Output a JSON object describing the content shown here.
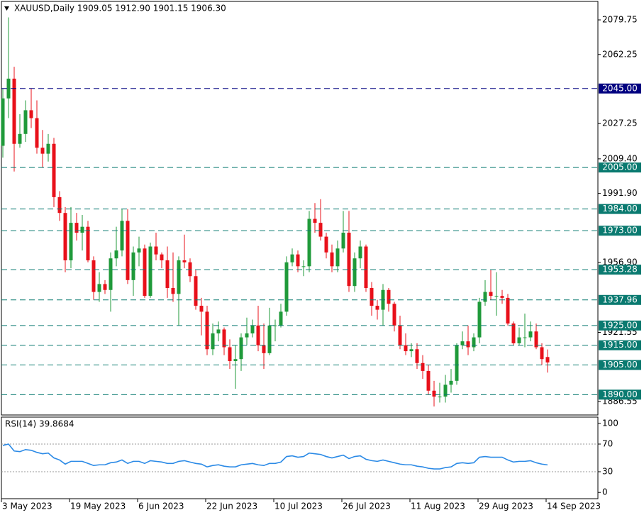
{
  "chart_data": [
    {
      "type": "candlestick",
      "title": "XAUUSD,Daily  1909.05 1912.90 1901.15 1906.30",
      "categories": [
        "3 May 2023",
        null,
        null,
        null,
        null,
        null,
        null,
        null,
        null,
        null,
        null,
        null,
        "19 May 2023",
        null,
        null,
        null,
        null,
        null,
        null,
        null,
        null,
        null,
        null,
        null,
        "6 Jun 2023",
        null,
        null,
        null,
        null,
        null,
        null,
        null,
        null,
        null,
        null,
        null,
        "22 Jun 2023",
        null,
        null,
        null,
        null,
        null,
        null,
        null,
        null,
        null,
        null,
        null,
        "10 Jul 2023",
        null,
        null,
        null,
        null,
        null,
        null,
        null,
        null,
        null,
        null,
        null,
        "26 Jul 2023",
        null,
        null,
        null,
        null,
        null,
        null,
        null,
        null,
        null,
        null,
        null,
        "11 Aug 2023",
        null,
        null,
        null,
        null,
        null,
        null,
        null,
        null,
        null,
        null,
        null,
        "29 Aug 2023",
        null,
        null,
        null,
        null,
        null,
        null,
        null,
        null,
        null,
        null,
        null,
        "14 Sep 2023"
      ],
      "open": [
        2016,
        2040,
        2050,
        2017,
        2022,
        2034,
        2030,
        2015,
        2012,
        2017,
        1990,
        1982,
        1958,
        1977,
        1972,
        1975,
        1958,
        1942,
        1946,
        1943,
        1959,
        1963,
        1978,
        1948,
        1962,
        1964,
        1940,
        1965,
        1961,
        1958,
        1944,
        1941,
        1958,
        1957,
        1950,
        1935,
        1932,
        1913,
        1921,
        1923,
        1914,
        1907,
        1908,
        1919,
        1921,
        1925,
        1915,
        1911,
        1925,
        1925,
        1932,
        1957,
        1961,
        1955,
        1955,
        1979,
        1977,
        1970,
        1962,
        1955,
        1964,
        1972,
        1945,
        1959,
        1965,
        1944,
        1935,
        1933,
        1943,
        1936,
        1925,
        1915,
        1912,
        1913,
        1906,
        1902,
        1892,
        1889,
        1889,
        1895,
        1897,
        1915,
        1917,
        1914,
        1919,
        1937,
        1942,
        1940,
        1940,
        1939,
        1926,
        1916,
        1919,
        1919,
        1922,
        1914,
        1909.05
      ],
      "high": [
        2045,
        2081,
        2056,
        2032,
        2039,
        2045,
        2039,
        2024,
        2022,
        2020,
        1993,
        1985,
        1985,
        1982,
        1981,
        1978,
        1960,
        1952,
        1948,
        1962,
        1975,
        1984,
        1984,
        1965,
        1970,
        1966,
        1967,
        1972,
        1962,
        1965,
        1962,
        1960,
        1971,
        1959,
        1953,
        1939,
        1935,
        1926,
        1927,
        1924,
        1918,
        1915,
        1921,
        1929,
        1928,
        1935,
        1926,
        1934,
        1928,
        1936,
        1960,
        1964,
        1963,
        1958,
        1983,
        1987,
        1989,
        1972,
        1966,
        1968,
        1983,
        1983,
        1962,
        1968,
        1966,
        1947,
        1938,
        1946,
        1944,
        1937,
        1930,
        1921,
        1916,
        1916,
        1910,
        1905,
        1897,
        1896,
        1900,
        1903,
        1916,
        1922,
        1925,
        1921,
        1939,
        1948,
        1953,
        1952,
        1943,
        1941,
        1927,
        1924,
        1931,
        1927,
        1926,
        1916,
        1912.9
      ],
      "low": [
        2010,
        2030,
        2003,
        2015,
        2018,
        2025,
        2012,
        2005,
        2008,
        1985,
        1978,
        1952,
        1954,
        1968,
        1963,
        1957,
        1938,
        1937,
        1941,
        1932,
        1955,
        1960,
        1946,
        1940,
        1955,
        1939,
        1939,
        1958,
        1954,
        1939,
        1937,
        1925,
        1954,
        1947,
        1933,
        1920,
        1910,
        1910,
        1917,
        1910,
        1903,
        1893,
        1902,
        1915,
        1919,
        1912,
        1903,
        1910,
        1917,
        1924,
        1930,
        1955,
        1952,
        1950,
        1952,
        1972,
        1968,
        1959,
        1952,
        1952,
        1962,
        1942,
        1942,
        1954,
        1942,
        1930,
        1928,
        1925,
        1932,
        1922,
        1913,
        1910,
        1909,
        1903,
        1898,
        1890,
        1884,
        1886,
        1886,
        1891,
        1895,
        1913,
        1910,
        1912,
        1916,
        1935,
        1938,
        1930,
        1936,
        1925,
        1915,
        1915,
        1914,
        1917,
        1913,
        1905,
        1901.15
      ],
      "close": [
        2040,
        2050,
        2017,
        2022,
        2034,
        2030,
        2015,
        2012,
        2017,
        1990,
        1982,
        1958,
        1977,
        1972,
        1975,
        1958,
        1942,
        1946,
        1943,
        1959,
        1963,
        1978,
        1948,
        1962,
        1964,
        1940,
        1965,
        1961,
        1958,
        1944,
        1941,
        1958,
        1957,
        1950,
        1935,
        1932,
        1913,
        1921,
        1923,
        1914,
        1907,
        1908,
        1919,
        1921,
        1925,
        1915,
        1911,
        1925,
        1925,
        1932,
        1957,
        1961,
        1955,
        1955,
        1979,
        1977,
        1970,
        1962,
        1955,
        1964,
        1972,
        1945,
        1959,
        1965,
        1944,
        1935,
        1933,
        1943,
        1936,
        1925,
        1915,
        1912,
        1913,
        1906,
        1902,
        1892,
        1889,
        1889,
        1895,
        1897,
        1915,
        1917,
        1914,
        1919,
        1937,
        1942,
        1940,
        1940,
        1939,
        1926,
        1916,
        1919,
        1919,
        1922,
        1914,
        1908,
        1906.3
      ],
      "up_color": "#1f9a3a",
      "down_color": "#e8101a",
      "ylim": [
        1879.7,
        2089.1
      ],
      "yticks": [
        2079.75,
        2062.25,
        2027.25,
        {
          "value": 2009.4,
          "label": "2009.40"
        },
        {
          "value": 1991.9,
          "label": "1991.90"
        },
        {
          "value": 1956.9,
          "label": "1956.90"
        },
        1921.55,
        1886.55
      ],
      "levels": [
        {
          "value": 2045,
          "label": "2045.00",
          "color": "#000080"
        },
        {
          "value": 2005,
          "label": "2005.00",
          "color": "#0a7a70"
        },
        {
          "value": 1984,
          "label": "1984.00",
          "color": "#0a7a70"
        },
        {
          "value": 1973,
          "label": "1973.00",
          "color": "#0a7a70"
        },
        {
          "value": 1953.28,
          "label": "1953.28",
          "color": "#0a7a70"
        },
        {
          "value": 1937.96,
          "label": "1937.96",
          "color": "#0a7a70"
        },
        {
          "value": 1925,
          "label": "1925.00",
          "color": "#0a7a70"
        },
        {
          "value": 1915,
          "label": "1915.00",
          "color": "#0a7a70"
        },
        {
          "value": 1905,
          "label": "1905.00",
          "color": "#0a7a70"
        },
        {
          "value": 1890,
          "label": "1890.00",
          "color": "#0a7a70"
        }
      ]
    },
    {
      "type": "line",
      "title": "RSI(14) 39.8684",
      "color": "#2b8ae6",
      "values": [
        68,
        70,
        60,
        59,
        62,
        61,
        58,
        56,
        57,
        50,
        47,
        41,
        45,
        45,
        45,
        42,
        39,
        40,
        40,
        43,
        44,
        47,
        42,
        45,
        45,
        42,
        46,
        45,
        44,
        42,
        42,
        45,
        46,
        44,
        42,
        41,
        37,
        39,
        40,
        38,
        37,
        37,
        40,
        41,
        42,
        40,
        39,
        42,
        42,
        44,
        52,
        53,
        51,
        52,
        57,
        56,
        55,
        52,
        50,
        52,
        54,
        49,
        52,
        53,
        48,
        46,
        45,
        47,
        45,
        43,
        41,
        40,
        40,
        38,
        37,
        35,
        34,
        34,
        36,
        37,
        42,
        43,
        42,
        43,
        51,
        52,
        51,
        51,
        51,
        47,
        44,
        45,
        45,
        46,
        43,
        41,
        39.8684
      ],
      "ylim": [
        -9,
        109
      ],
      "yticks": [
        100,
        70,
        30,
        0
      ],
      "levels": [
        70,
        30
      ]
    }
  ]
}
